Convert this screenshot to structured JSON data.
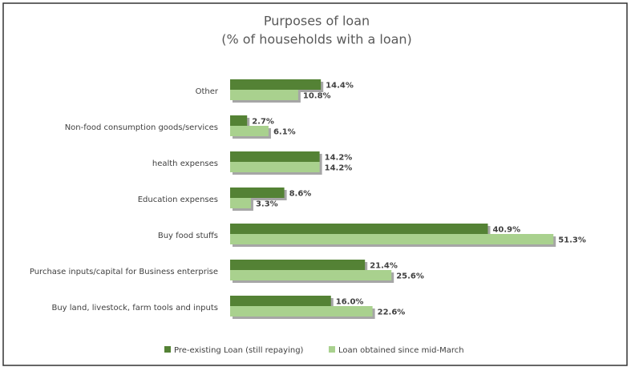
{
  "chart_data": {
    "type": "bar",
    "orientation": "horizontal",
    "title": "Purposes of loan",
    "subtitle": "(% of households with a loan)",
    "categories": [
      "Other",
      "Non-food consumption goods/services",
      "health expenses",
      "Education expenses",
      "Buy food stuffs",
      "Purchase inputs/capital for Business enterprise",
      "Buy land, livestock, farm tools and inputs"
    ],
    "series": [
      {
        "name": "Pre-existing Loan (still repaying)",
        "color": "#548235",
        "values": [
          14.4,
          2.7,
          14.2,
          8.6,
          40.9,
          21.4,
          16.0
        ],
        "value_labels": [
          "14.4%",
          "2.7%",
          "14.2%",
          "8.6%",
          "40.9%",
          "21.4%",
          "16.0%"
        ]
      },
      {
        "name": "Loan obtained since mid-March",
        "color": "#a9d18e",
        "values": [
          10.8,
          6.1,
          14.2,
          3.3,
          51.3,
          25.6,
          22.6
        ],
        "value_labels": [
          "10.8%",
          "6.1%",
          "14.2%",
          "3.3%",
          "51.3%",
          "25.6%",
          "22.6%"
        ]
      }
    ],
    "legend": "bottom"
  }
}
